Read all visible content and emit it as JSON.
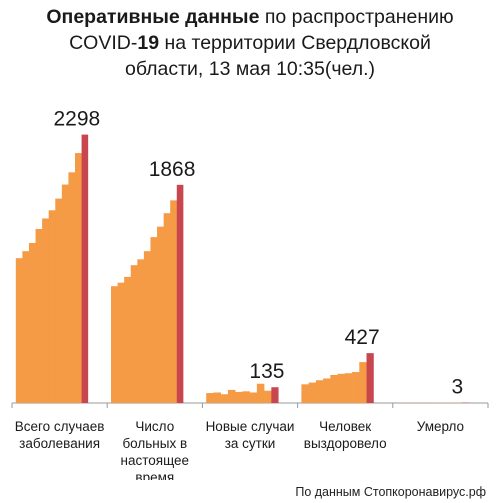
{
  "header": {
    "title_bold": "Оперативные данные",
    "title_rest": " по распространению",
    "line2_prefix": "COVID-",
    "line2_bold": "19",
    "line2_rest": " на территории Свердловской",
    "line3": "области, 13 мая 10:35(чел.)"
  },
  "footer": {
    "source": "По данным Стопкоронавирус.рф"
  },
  "chart_data": {
    "type": "bar",
    "title": "Оперативные данные по распространению COVID-19 на территории Свердловской области, 13 мая 10:35(чел.)",
    "categories": [
      [
        "Всего случаев",
        "заболевания"
      ],
      [
        "Число",
        "больных в",
        "настоящее",
        "время"
      ],
      [
        "Новые случаи",
        "за сутки"
      ],
      [
        "Человек",
        "выздоровело"
      ],
      [
        "Умерло"
      ]
    ],
    "series": [
      {
        "history": [
          1240,
          1300,
          1370,
          1490,
          1580,
          1650,
          1750,
          1870,
          1975,
          2140
        ],
        "current": 2298
      },
      {
        "history": [
          1000,
          1030,
          1080,
          1180,
          1230,
          1300,
          1420,
          1510,
          1625,
          1735
        ],
        "current": 1868
      },
      {
        "history": [
          85,
          90,
          75,
          112,
          95,
          100,
          90,
          165,
          105
        ],
        "current": 135
      },
      {
        "history": [
          160,
          175,
          195,
          210,
          240,
          250,
          255,
          265,
          350
        ],
        "current": 427
      },
      {
        "history": [
          1,
          1,
          1,
          1,
          1,
          2,
          2,
          2,
          3
        ],
        "current": 3
      }
    ],
    "ylim": [
      0,
      2500
    ],
    "colors": {
      "history": "#f59a45",
      "current": "#c8474e",
      "axis": "#999999",
      "label": "#1a1a1a"
    }
  }
}
